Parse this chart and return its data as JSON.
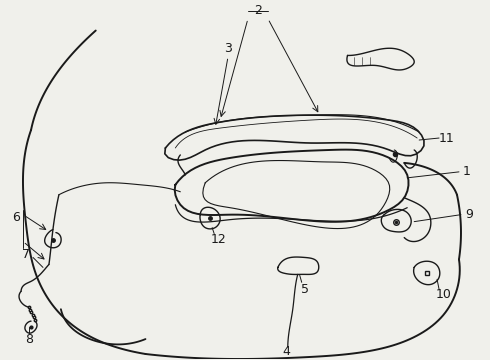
{
  "background_color": "#f0f0eb",
  "line_color": "#1a1a1a",
  "fig_width": 4.9,
  "fig_height": 3.6,
  "dpi": 100
}
